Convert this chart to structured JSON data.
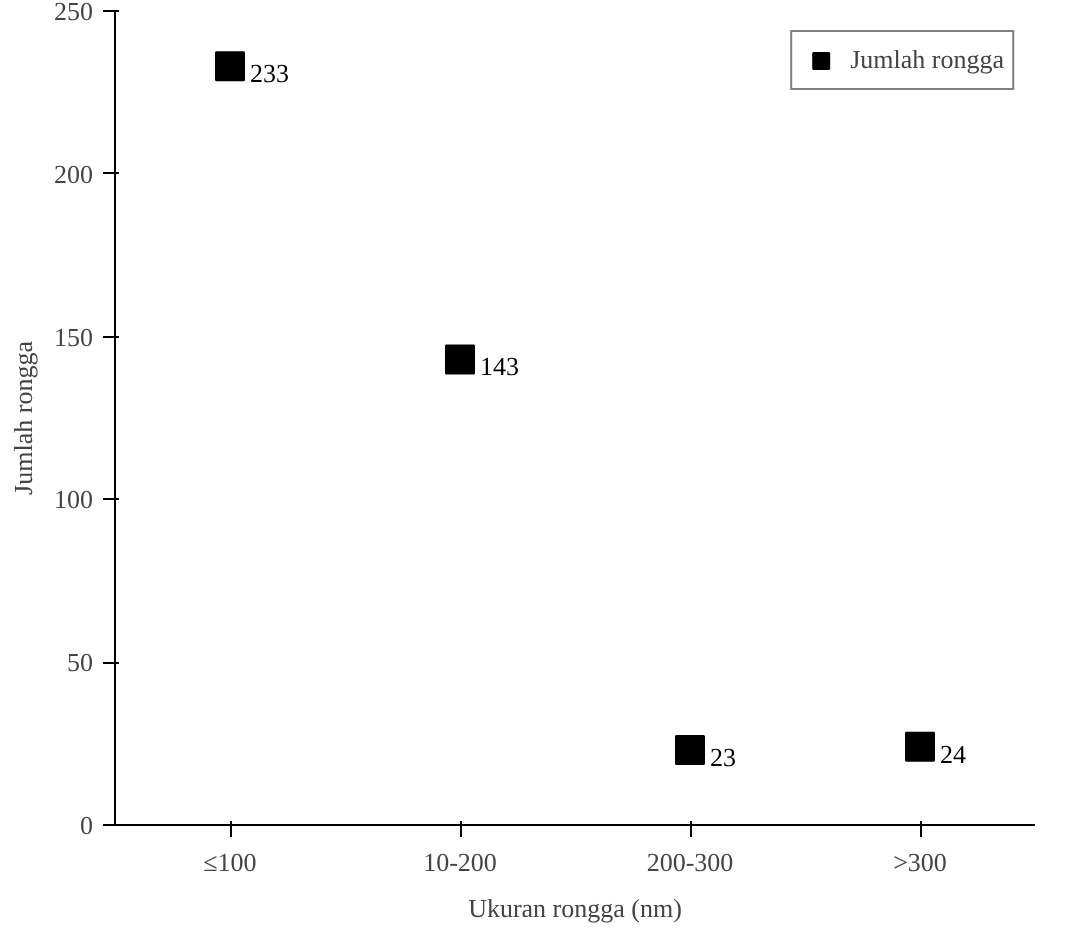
{
  "chart_data": {
    "type": "scatter",
    "xlabel": "Ukuran rongga (nm)",
    "ylabel": "Jumlah rongga",
    "categories": [
      "≤100",
      "10-200",
      "200-300",
      ">300"
    ],
    "series": [
      {
        "name": "Jumlah rongga",
        "color": "#000000",
        "values": [
          233,
          143,
          23,
          24
        ]
      }
    ],
    "ylim": [
      0,
      250
    ],
    "yticks": [
      0,
      50,
      100,
      150,
      200,
      250
    ],
    "grid": false,
    "legend": "top right",
    "marker": "square",
    "data_labels": true
  }
}
